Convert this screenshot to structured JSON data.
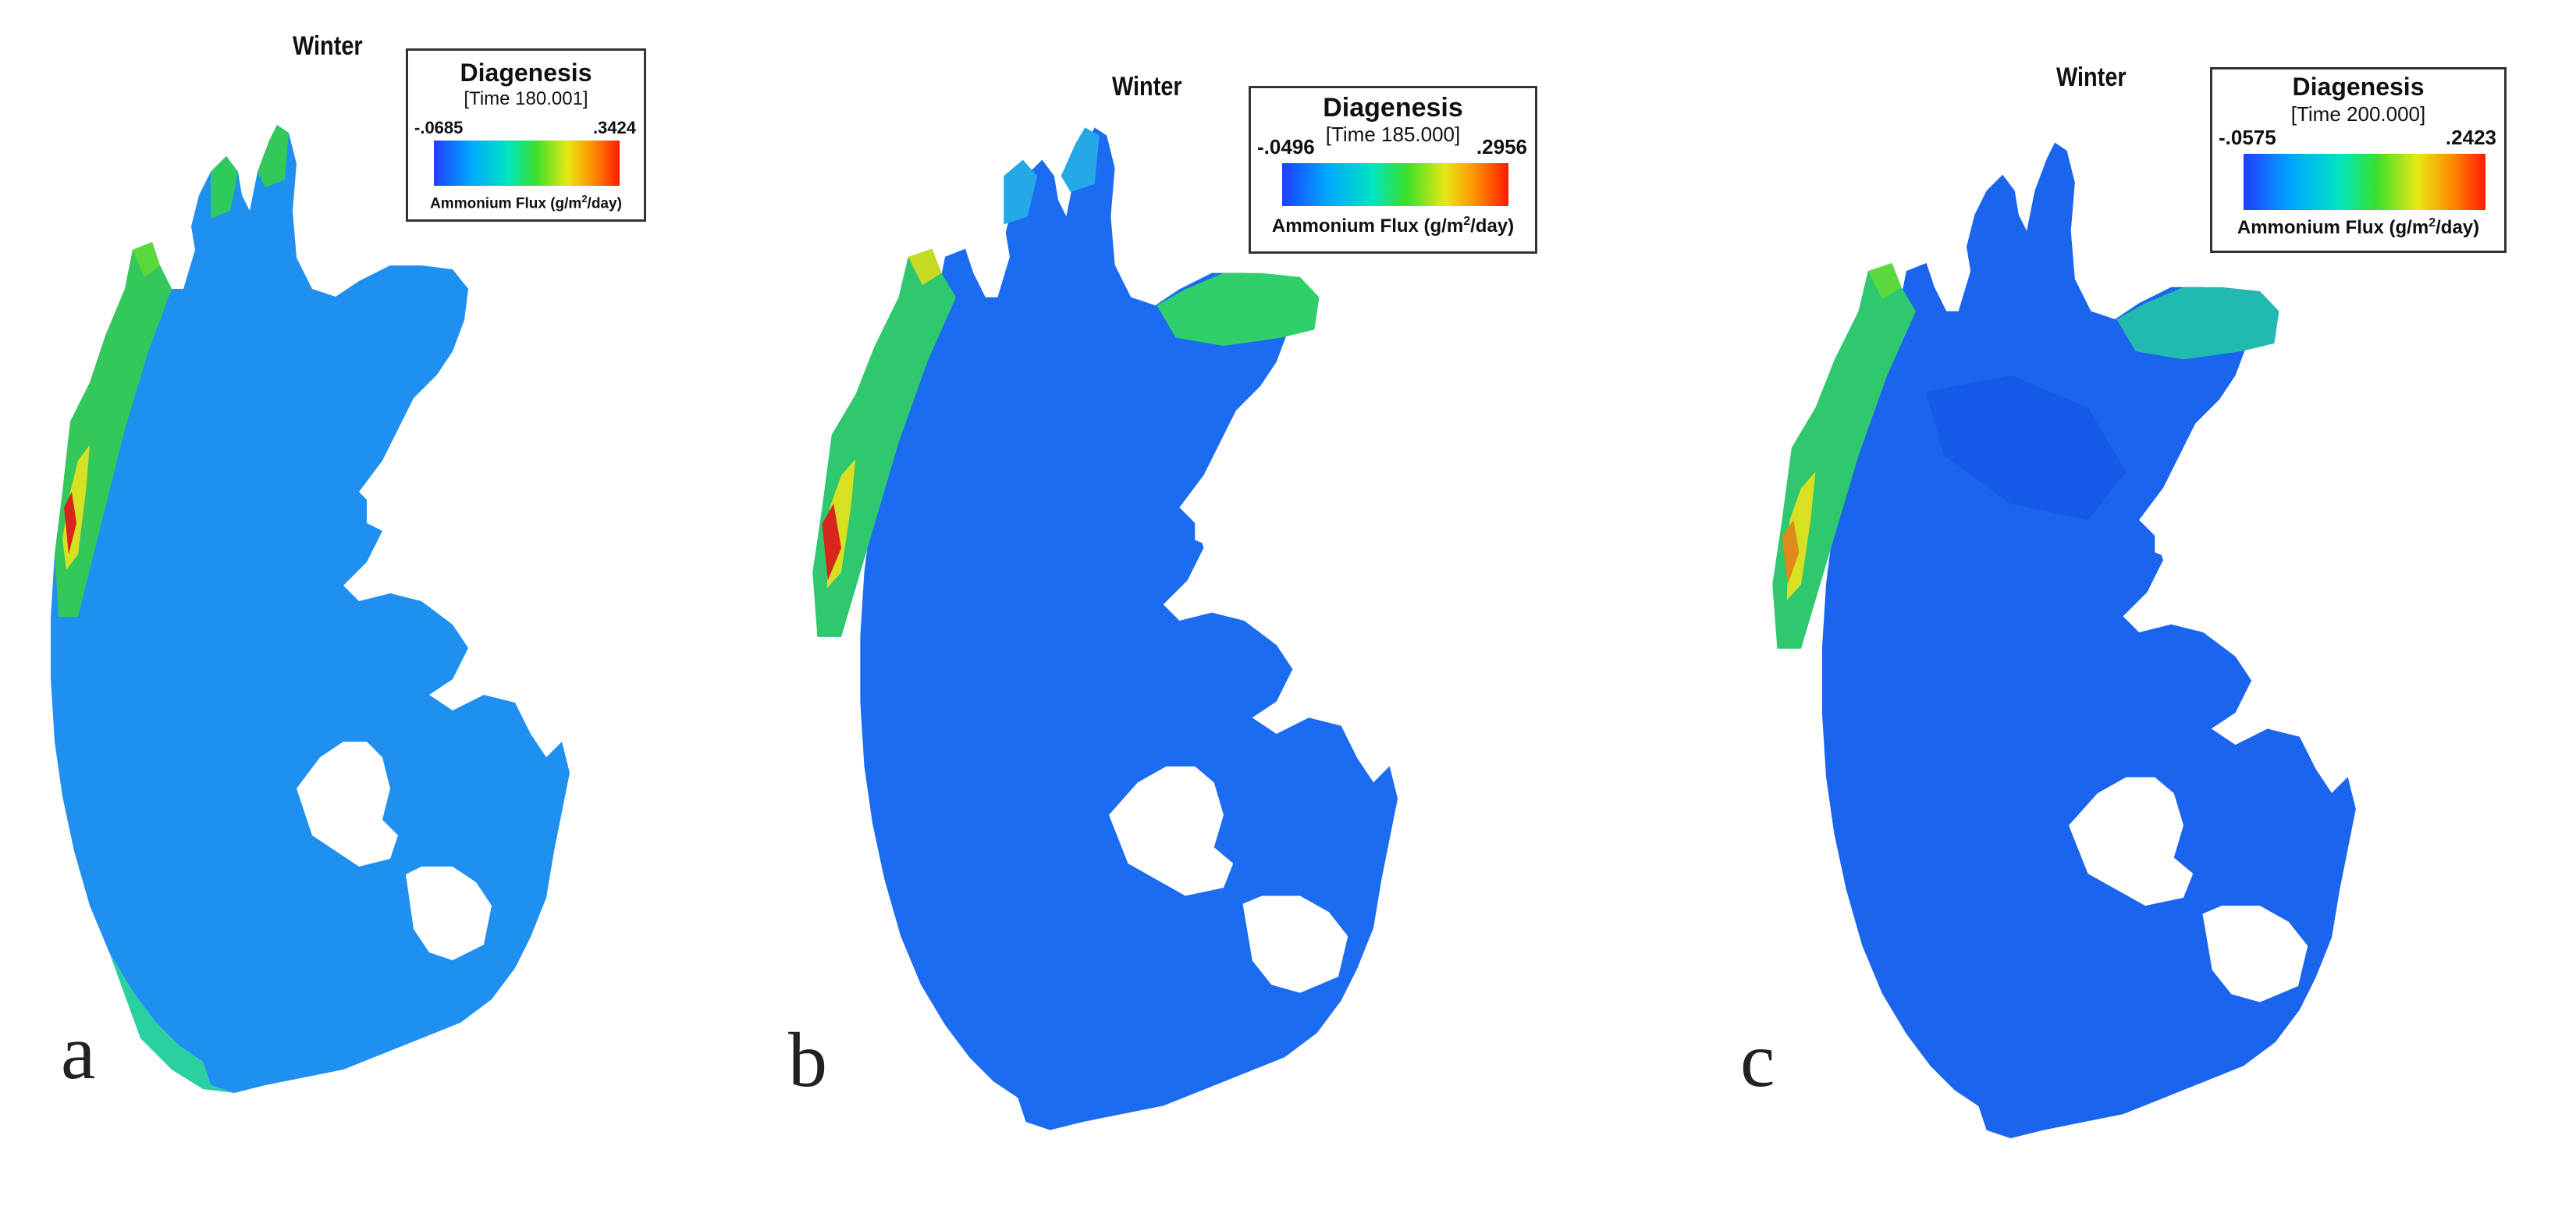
{
  "panels": [
    {
      "letter": "a",
      "season": "Winter",
      "legend": {
        "title": "Diagenesis",
        "time": "[Time 180.001]",
        "min": "-.0685",
        "max": ".3424",
        "units_prefix": "Ammonium Flux (g/m",
        "units_exp": "2",
        "units_suffix": "/day)"
      }
    },
    {
      "letter": "b",
      "season": "Winter",
      "legend": {
        "title": "Diagenesis",
        "time": "[Time 185.000]",
        "min": "-.0496",
        "max": ".2956",
        "units_prefix": "Ammonium Flux (g/m",
        "units_exp": "2",
        "units_suffix": "/day)"
      }
    },
    {
      "letter": "c",
      "season": "Winter",
      "legend": {
        "title": "Diagenesis",
        "time": "[Time 200.000]",
        "min": "-.0575",
        "max": ".2423",
        "units_prefix": "Ammonium Flux (g/m",
        "units_exp": "2",
        "units_suffix": "/day)"
      }
    }
  ],
  "colorscale": [
    "#1f3dff",
    "#00a8ff",
    "#00e5c0",
    "#39e02a",
    "#e8e814",
    "#ff8c00",
    "#ff1a00"
  ],
  "colors": {
    "water_base": "#1a66f0",
    "water_light": "#21a0e8",
    "shore_green": "#3ad64a",
    "shore_yellow": "#d6e21e",
    "hotspot_red": "#e0201a"
  }
}
